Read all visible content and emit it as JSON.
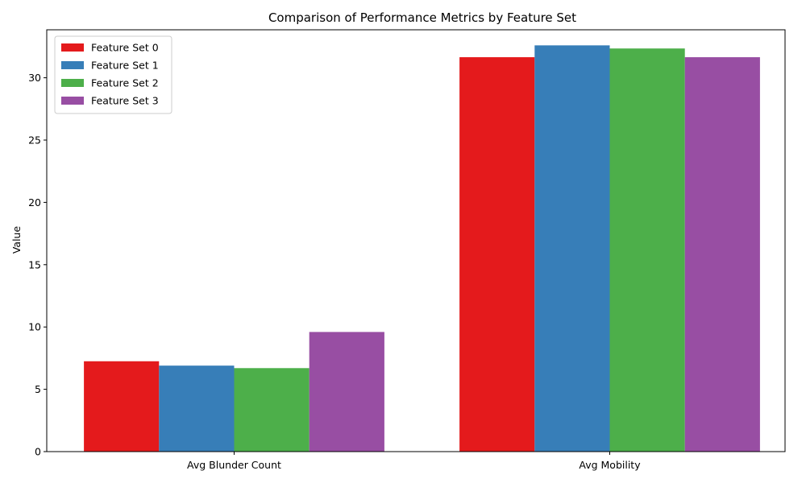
{
  "chart_data": {
    "type": "bar",
    "title": "Comparison of Performance Metrics by Feature Set",
    "xlabel": "",
    "ylabel": "Value",
    "categories": [
      "Avg Blunder Count",
      "Avg Mobility"
    ],
    "series": [
      {
        "name": "Feature Set 0",
        "color": "#e41a1c",
        "values": [
          7.25,
          31.65
        ]
      },
      {
        "name": "Feature Set 1",
        "color": "#377eb8",
        "values": [
          6.9,
          32.6
        ]
      },
      {
        "name": "Feature Set 2",
        "color": "#4daf4a",
        "values": [
          6.7,
          32.35
        ]
      },
      {
        "name": "Feature Set 3",
        "color": "#984ea3",
        "values": [
          9.6,
          31.65
        ]
      }
    ],
    "ylim": [
      0,
      33.85
    ],
    "yticks": [
      0,
      5,
      10,
      15,
      20,
      25,
      30
    ],
    "grid": false,
    "legend": "top-left"
  }
}
